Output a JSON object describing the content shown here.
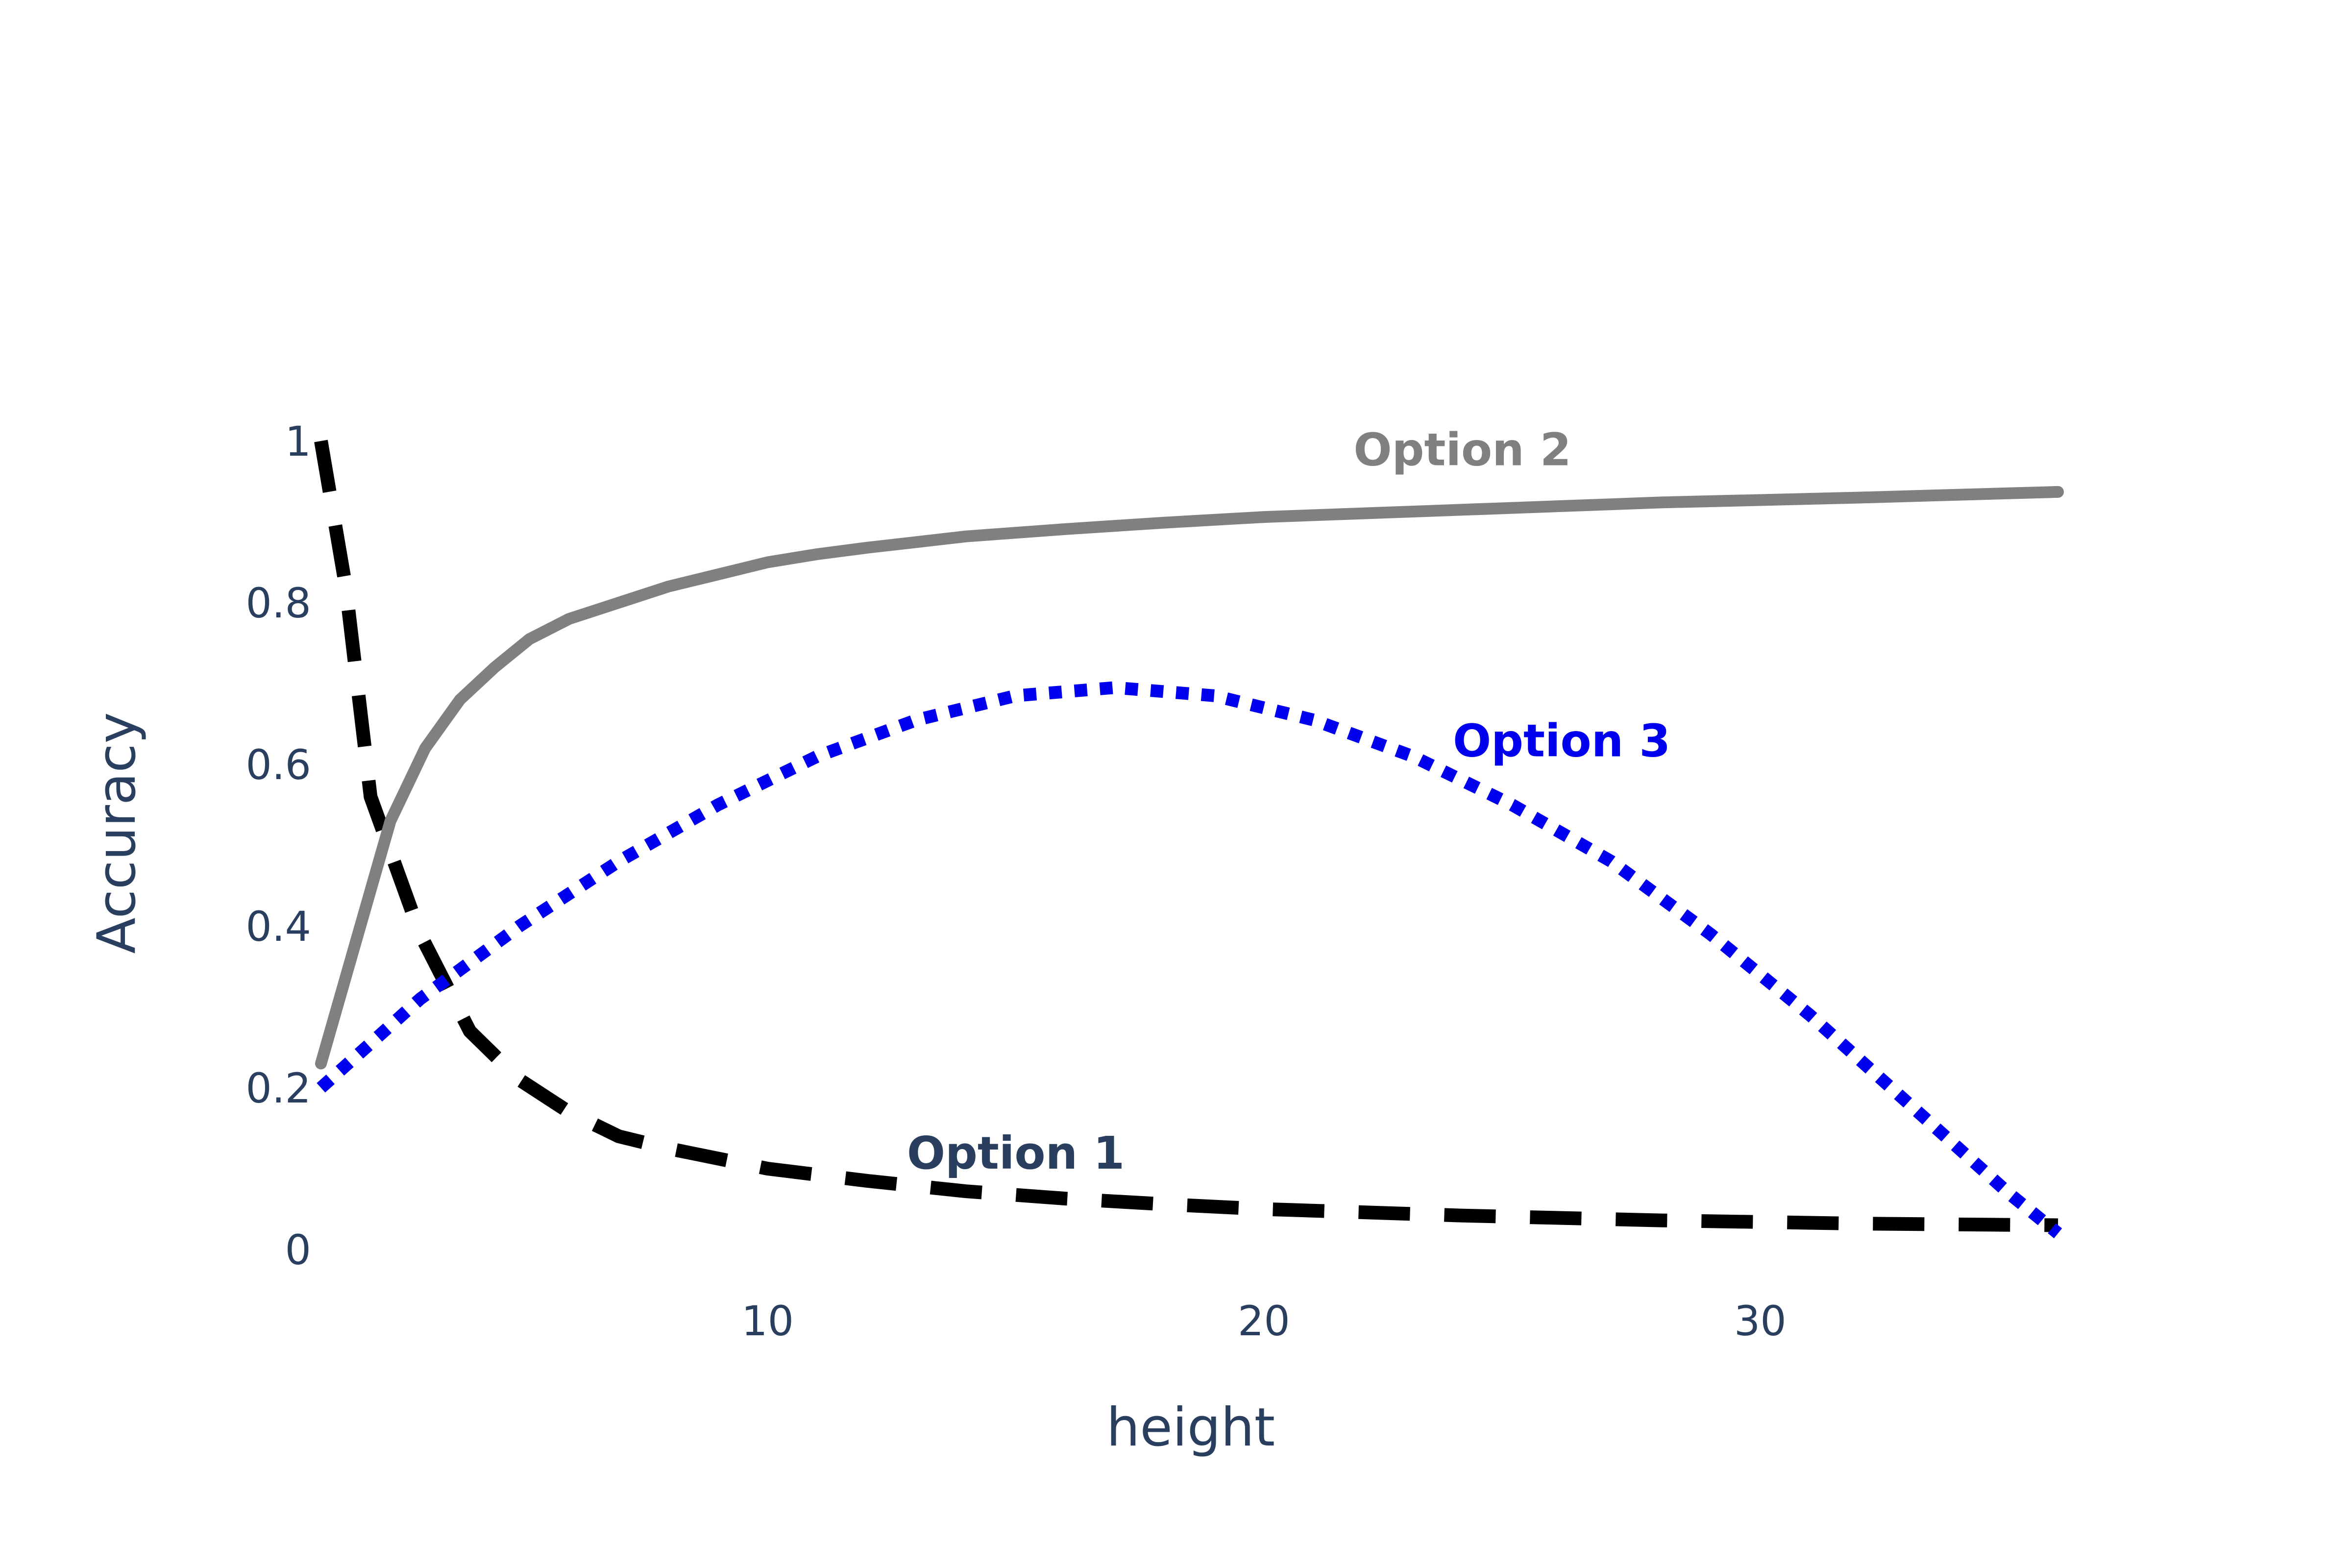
{
  "chart_data": {
    "type": "line",
    "title": "",
    "xlabel": "height",
    "ylabel": "Accuracy",
    "xlim": [
      1,
      36
    ],
    "ylim": [
      0,
      1
    ],
    "grid": false,
    "legend": "none",
    "x_ticks": [
      10,
      20,
      30
    ],
    "x_tick_labels": [
      "10",
      "20",
      "30"
    ],
    "y_ticks": [
      0,
      0.2,
      0.4,
      0.6,
      0.8,
      1
    ],
    "y_tick_labels": [
      "0",
      "0.2",
      "0.4",
      "0.6",
      "0.8",
      "1"
    ],
    "series": [
      {
        "name": "Option 1",
        "color": "#000000",
        "dash": "dash",
        "label_color": "#2a3f5f",
        "label_at": [
          15,
          0.1
        ],
        "x": [
          1,
          1.5,
          2,
          3,
          4,
          5,
          6,
          7,
          8,
          10,
          12,
          14,
          16,
          18,
          20,
          24,
          28,
          32,
          36
        ],
        "y": [
          1.0,
          0.82,
          0.56,
          0.39,
          0.27,
          0.21,
          0.17,
          0.14,
          0.125,
          0.1,
          0.085,
          0.072,
          0.063,
          0.056,
          0.05,
          0.042,
          0.036,
          0.032,
          0.03
        ]
      },
      {
        "name": "Option 2",
        "color": "#808080",
        "dash": "solid",
        "label_color": "#808080",
        "label_at": [
          24,
          0.97
        ],
        "x": [
          1,
          2.4,
          3.1,
          3.8,
          4.5,
          5.2,
          6,
          7,
          8,
          9,
          10,
          11,
          12,
          13,
          14,
          16,
          18,
          20,
          24,
          28,
          32,
          36
        ],
        "y": [
          0.23,
          0.53,
          0.62,
          0.68,
          0.72,
          0.755,
          0.78,
          0.8,
          0.82,
          0.835,
          0.85,
          0.86,
          0.868,
          0.875,
          0.882,
          0.891,
          0.899,
          0.906,
          0.915,
          0.924,
          0.93,
          0.937
        ]
      },
      {
        "name": "Option 3",
        "color": "#0000ee",
        "dash": "dot",
        "label_color": "#0000ee",
        "label_at": [
          26,
          0.61
        ],
        "x": [
          1,
          3,
          5,
          7,
          9,
          11,
          13,
          15,
          17,
          19,
          21,
          23,
          25,
          27,
          29,
          31,
          33,
          35,
          36
        ],
        "y": [
          0.2,
          0.31,
          0.4,
          0.48,
          0.55,
          0.61,
          0.655,
          0.685,
          0.695,
          0.685,
          0.655,
          0.61,
          0.55,
          0.48,
          0.39,
          0.29,
          0.18,
          0.07,
          0.02
        ]
      }
    ]
  }
}
